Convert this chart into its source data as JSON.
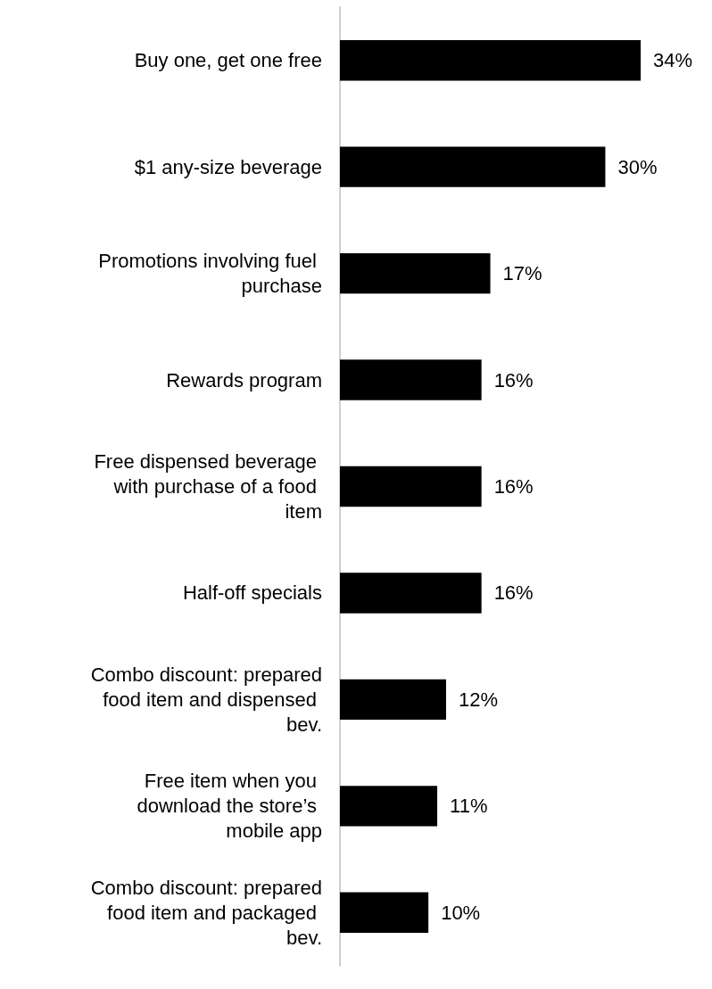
{
  "chart_data": {
    "type": "bar",
    "orientation": "horizontal",
    "categories": [
      "Buy one, get one free",
      "$1 any-size beverage",
      "Promotions involving fuel purchase",
      "Rewards program",
      "Free dispensed beverage with purchase of a food item",
      "Half-off specials",
      "Combo discount: prepared food item and dispensed bev.",
      "Free item when you download the store’s mobile app",
      "Combo discount: prepared food item and packaged bev."
    ],
    "values": [
      34,
      30,
      17,
      16,
      16,
      16,
      12,
      11,
      10
    ],
    "value_labels": [
      "34%",
      "30%",
      "17%",
      "16%",
      "16%",
      "16%",
      "12%",
      "11%",
      "10%"
    ],
    "color": "#000000",
    "tick_labels": "y"
  }
}
